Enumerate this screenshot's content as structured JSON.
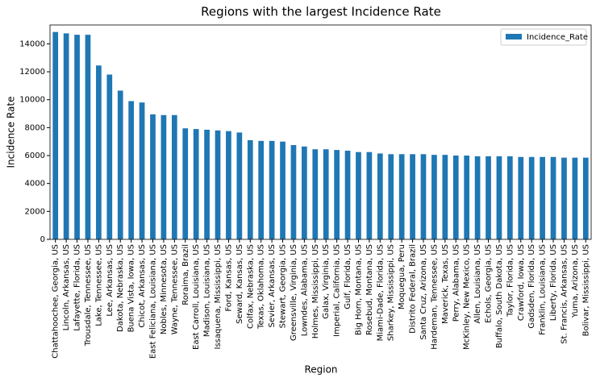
{
  "chart_data": {
    "type": "bar",
    "title": "Regions with the largest Incidence Rate",
    "x_label": "Region",
    "y_label": "Incidence Rate",
    "categories": [
      "Chattahoochee, Georgia, US",
      "Lincoln, Arkansas, US",
      "Lafayette, Florida, US",
      "Trousdale, Tennessee, US",
      "Lake, Tennessee, US",
      "Lee, Arkansas, US",
      "Dakota, Nebraska, US",
      "Buena Vista, Iowa, US",
      "Chicot, Arkansas, US",
      "East Feliciana, Louisiana, US",
      "Nobles, Minnesota, US",
      "Wayne, Tennessee, US",
      "Roraima, Brazil",
      "East Carroll, Louisiana, US",
      "Madison, Louisiana, US",
      "Issaquena, Mississippi, US",
      "Ford, Kansas, US",
      "Seward, Kansas, US",
      "Colfax, Nebraska, US",
      "Texas, Oklahoma, US",
      "Sevier, Arkansas, US",
      "Stewart, Georgia, US",
      "Greensville, Virginia, US",
      "Lowndes, Alabama, US",
      "Holmes, Mississippi, US",
      "Galax, Virginia, US",
      "Imperial, California, US",
      "Gulf, Florida, US",
      "Big Horn, Montana, US",
      "Rosebud, Montana, US",
      "Miami-Dade, Florida, US",
      "Sharkey, Mississippi, US",
      "Moquegua, Peru",
      "Distrito Federal, Brazil",
      "Santa Cruz, Arizona, US",
      "Hardeman, Tennessee, US",
      "Maverick, Texas, US",
      "Perry, Alabama, US",
      "McKinley, New Mexico, US",
      "Allen, Louisiana, US",
      "Echols, Georgia, US",
      "Buffalo, South Dakota, US",
      "Taylor, Florida, US",
      "Crawford, Iowa, US",
      "Gadsden, Florida, US",
      "Franklin, Louisiana, US",
      "Liberty, Florida, US",
      "St. Francis, Arkansas, US",
      "Yuma, Arizona, US",
      "Bolivar, Mississippi, US"
    ],
    "series": [
      {
        "name": "Incidence_Rate",
        "color": "#1f77b4",
        "values": [
          14850,
          14750,
          14650,
          14650,
          12450,
          11800,
          10650,
          9900,
          9800,
          8950,
          8900,
          8900,
          7950,
          7900,
          7850,
          7800,
          7750,
          7650,
          7100,
          7050,
          7050,
          7000,
          6750,
          6650,
          6450,
          6450,
          6400,
          6350,
          6250,
          6250,
          6150,
          6100,
          6100,
          6100,
          6100,
          6050,
          6050,
          6000,
          6000,
          5950,
          5950,
          5950,
          5950,
          5900,
          5900,
          5900,
          5900,
          5850,
          5850,
          5850
        ]
      }
    ],
    "ylim": [
      0,
      15350
    ],
    "yticks": [
      0,
      2000,
      4000,
      6000,
      8000,
      10000,
      12000,
      14000
    ],
    "legend": "upper right"
  }
}
